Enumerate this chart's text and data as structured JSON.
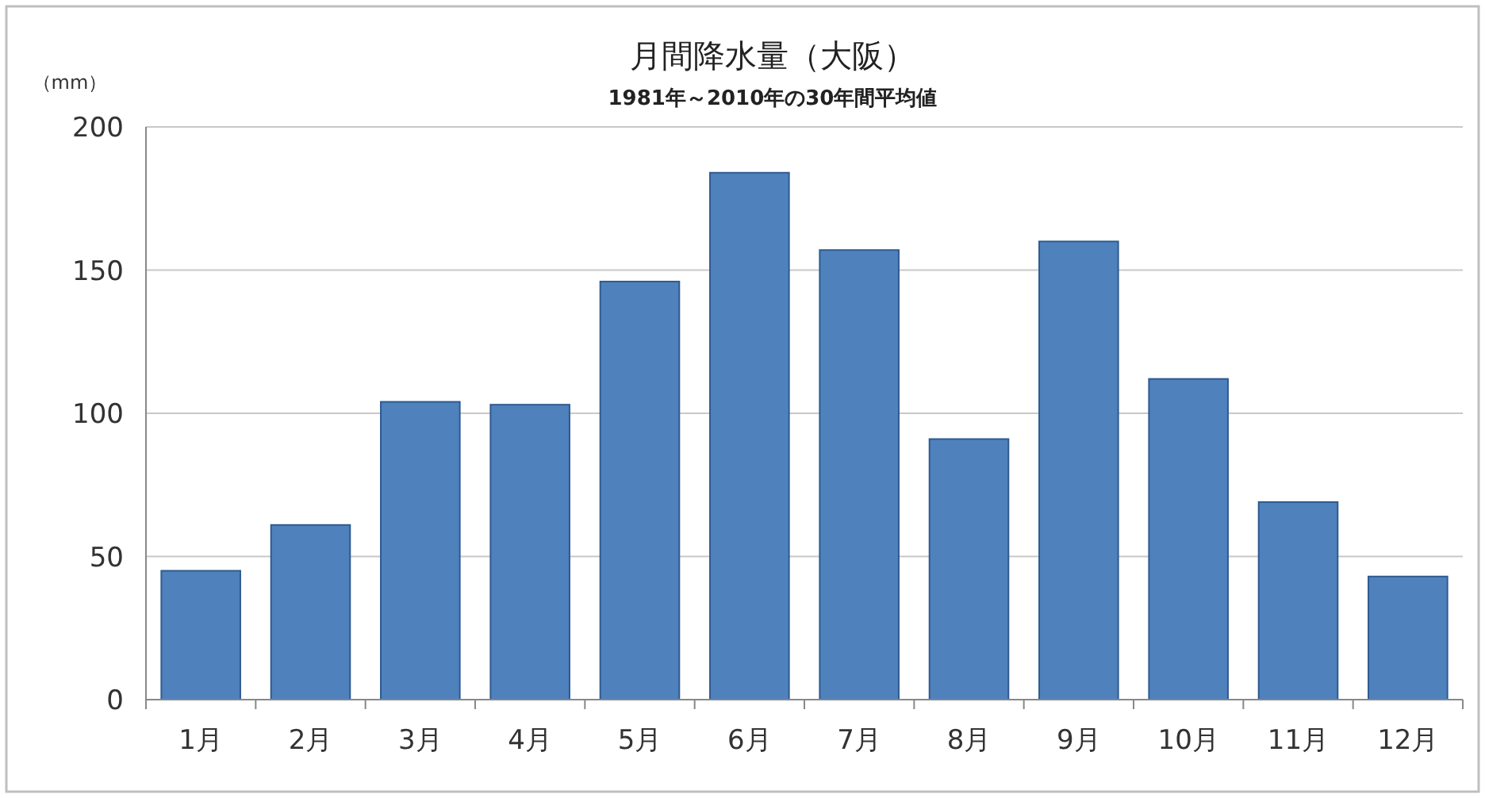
{
  "chart_data": {
    "type": "bar",
    "title": "月間降水量（大阪）",
    "subtitle": "1981年～2010年の30年間平均値",
    "ylabel": "（mm）",
    "categories": [
      "1月",
      "2月",
      "3月",
      "4月",
      "5月",
      "6月",
      "7月",
      "8月",
      "9月",
      "10月",
      "11月",
      "12月"
    ],
    "values": [
      45,
      61,
      104,
      103,
      146,
      184,
      157,
      91,
      160,
      112,
      69,
      43
    ],
    "color": "#4f81bd",
    "ylim": [
      0,
      200
    ],
    "yticks": [
      0,
      50,
      100,
      150,
      200
    ],
    "grid": "y"
  }
}
